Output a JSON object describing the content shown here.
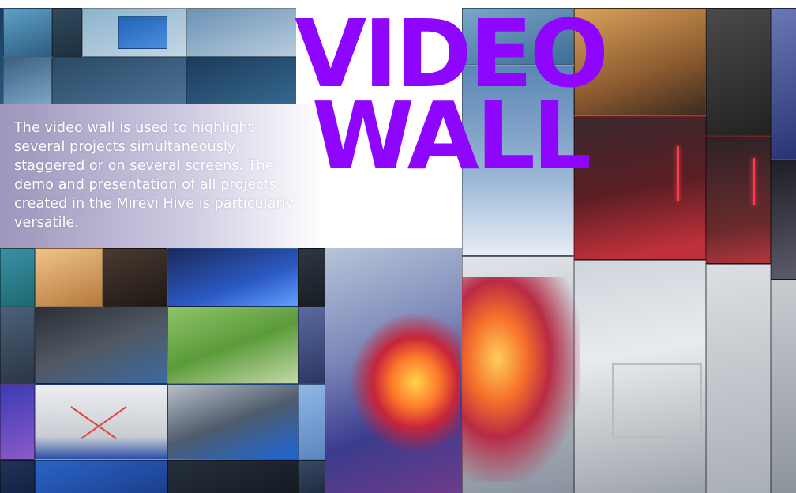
{
  "headline": {
    "line1": "VIDEO",
    "line2": "WALL",
    "color": "#8f06ff"
  },
  "description": "The video wall is used to highlight several projects simultaneously, staggered or on several screens. The demo and presentation of all projects created in the Mirevi Hive is particularly versatile.",
  "background": {
    "photo": "video-wall-collage-photo"
  }
}
